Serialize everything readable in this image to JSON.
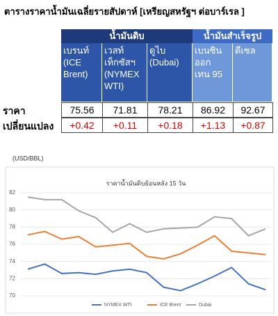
{
  "header": {
    "title": "ตารางราคาน้ำมันเฉลี่ยรายสัปดาห์ [เหรียญสหรัฐฯ ต่อบาร์เรล ]"
  },
  "table": {
    "groups": [
      "น้ำมันดิบ",
      "น้ำมันสำเร็จรูป"
    ],
    "columns": [
      "เบรนท์\n(ICE\nBrent)",
      "เวสท์\nเท็กซัสฯ\n(NYMEX\nWTI)",
      "ดูไบ\n(Dubai)",
      "เบนซิน\nออก\nเทน 95",
      "ดีเซล"
    ],
    "rows": [
      {
        "label": "ราคา",
        "cells": [
          "75.56",
          "71.81",
          "78.21",
          "86.92",
          "92.67"
        ]
      },
      {
        "label": "เปลี่ยนแปลง",
        "cells": [
          "+0.42",
          "+0.11",
          "+0.18",
          "+1.13",
          "+0.87"
        ]
      }
    ]
  },
  "chart_data": {
    "type": "line",
    "title": "ราคาน้ำมันดิบย้อนหลัง 15 วัน",
    "y_label": "(USD/BBL)",
    "ylim": [
      70,
      82
    ],
    "yticks": [
      70,
      72,
      74,
      76,
      78,
      80,
      82
    ],
    "grid": true,
    "series": [
      {
        "name": "NYMEX WTI",
        "color": "#4472c4",
        "values": [
          73.1,
          73.7,
          72.6,
          72.7,
          72.5,
          72.9,
          73.1,
          72.7,
          71.0,
          70.6,
          71.4,
          72.3,
          73.3,
          71.4,
          70.7
        ]
      },
      {
        "name": "ICE Brent",
        "color": "#ed7d31",
        "values": [
          77.1,
          77.5,
          76.6,
          76.9,
          75.7,
          75.9,
          76.1,
          74.6,
          74.3,
          74.9,
          75.9,
          77.0,
          75.2,
          75.0,
          74.8
        ]
      },
      {
        "name": "Dubai",
        "color": "#a5a5a5",
        "values": [
          81.5,
          81.2,
          81.2,
          79.9,
          79.1,
          77.4,
          78.4,
          77.4,
          77.8,
          77.9,
          78.0,
          79.2,
          79.0,
          77.0,
          77.8
        ]
      }
    ]
  }
}
